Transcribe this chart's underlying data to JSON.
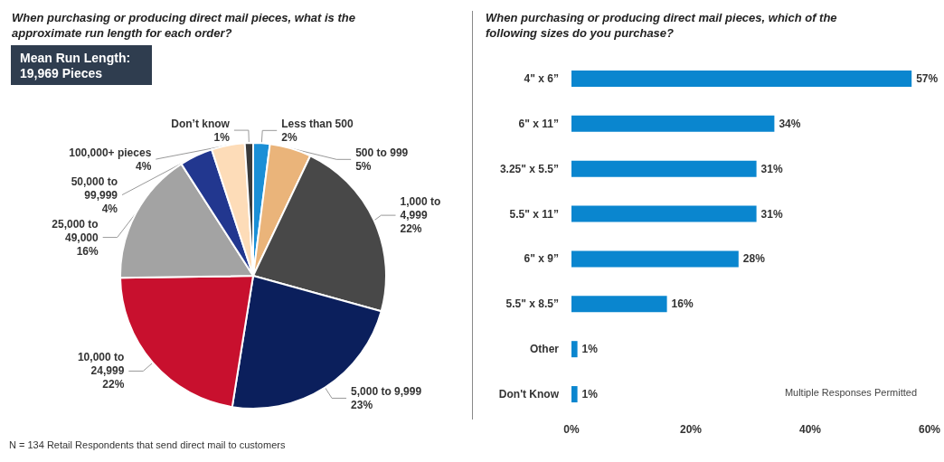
{
  "chart_data": [
    {
      "type": "pie",
      "title": "When purchasing or producing direct mail pieces, what is the\napproximate run length for each order?",
      "categories": [
        "Less than 500",
        "500 to 999",
        "1,000 to\n4,999",
        "5,000 to 9,999",
        "10,000 to\n24,999",
        "25,000 to\n49,000",
        "50,000 to\n99,999",
        "100,000+ pieces",
        "Don’t know"
      ],
      "values": [
        2,
        5,
        22,
        23,
        22,
        16,
        4,
        4,
        1
      ],
      "value_labels": [
        "2%",
        "5%",
        "22%",
        "23%",
        "22%",
        "16%",
        "4%",
        "4%",
        "1%"
      ],
      "colors": [
        "#1b8fd6",
        "#eab47a",
        "#484848",
        "#0b1f5c",
        "#c8102e",
        "#a3a3a3",
        "#22378f",
        "#fddcb8",
        "#3a3a3a"
      ],
      "legend": false,
      "annotations": [
        "Mean Run Length:\n19,969 Pieces",
        "N = 134 Retail Respondents that send direct mail to customers"
      ]
    },
    {
      "type": "bar",
      "orientation": "horizontal",
      "title": "When purchasing or producing direct mail pieces, which of the\nfollowing sizes do you purchase?",
      "categories": [
        "4\" x 6”",
        "6\" x 11”",
        "3.25\" x 5.5”",
        "5.5\" x 11”",
        "6\" x 9”",
        "5.5\" x 8.5”",
        "Other",
        "Don't Know"
      ],
      "values": [
        57,
        34,
        31,
        31,
        28,
        16,
        1,
        1
      ],
      "value_labels": [
        "57%",
        "34%",
        "31%",
        "31%",
        "28%",
        "16%",
        "1%",
        "1%"
      ],
      "color": "#0a86cf",
      "xlim": [
        0,
        60
      ],
      "xticks": [
        {
          "value": 0,
          "label": "0%"
        },
        {
          "value": 20,
          "label": "20%"
        },
        {
          "value": 40,
          "label": "40%"
        },
        {
          "value": 60,
          "label": "60%"
        }
      ],
      "grid": false,
      "legend": false,
      "annotations": [
        "Multiple Responses Permitted"
      ]
    }
  ]
}
